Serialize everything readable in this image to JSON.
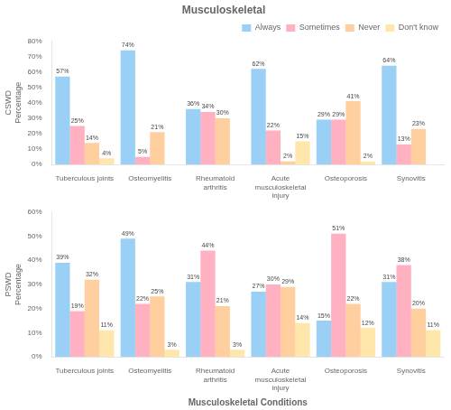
{
  "chart_data": [
    {
      "type": "bar",
      "title": "Musculoskeletal",
      "ylabel": [
        "CSWD",
        "Percentage"
      ],
      "categories": [
        "Tuberculous joints",
        "Osteomyelitis",
        "Rheumatoid\narthritis",
        "Acute\nmusculoskeletal\ninjury",
        "Osteoporosis",
        "Synovitis"
      ],
      "series": [
        {
          "name": "Always",
          "values": [
            0.57,
            0.74,
            0.36,
            0.62,
            0.29,
            0.64
          ],
          "value_labels": [
            "57%",
            "74%",
            "36%",
            "62%",
            "29%",
            "64%"
          ]
        },
        {
          "name": "Sometimes",
          "values": [
            0.25,
            0.05,
            0.34,
            0.22,
            0.29,
            0.13
          ],
          "value_labels": [
            "25%",
            "5%",
            "34%",
            "22%",
            "29%",
            "13%"
          ]
        },
        {
          "name": "Never",
          "values": [
            0.14,
            0.21,
            0.3,
            0.02,
            0.41,
            0.23
          ],
          "value_labels": [
            "14%",
            "21%",
            "30%",
            "2%",
            "41%",
            "23%"
          ]
        },
        {
          "name": "Don't know",
          "values": [
            0.04,
            0,
            0,
            0.15,
            0.02,
            0
          ],
          "value_labels": [
            "4%",
            null,
            null,
            "15%",
            "2%",
            null
          ]
        }
      ],
      "ylim": [
        0,
        0.8
      ],
      "yticks": [
        {
          "value": 0,
          "label": "0%"
        },
        {
          "value": 0.1,
          "label": "10%"
        },
        {
          "value": 0.2,
          "label": "20%"
        },
        {
          "value": 0.3,
          "label": "30%"
        },
        {
          "value": 0.4,
          "label": "40%"
        },
        {
          "value": 0.5,
          "label": "50%"
        },
        {
          "value": 0.6,
          "label": "60%"
        },
        {
          "value": 0.7,
          "label": "70%"
        },
        {
          "value": 0.8,
          "label": "80%"
        }
      ],
      "legend": "upper right",
      "data_labels": true,
      "grid": false
    },
    {
      "type": "bar",
      "xlabel": "Musculoskeletal Conditions",
      "ylabel": [
        "PSWD",
        "Percentage"
      ],
      "categories": [
        "Tuberculous joints",
        "Osteomyelitis",
        "Rheumatoid\narthritis",
        "Acute\nmusculoskeletal\ninjury",
        "Osteoporosis",
        "Synovitis"
      ],
      "series": [
        {
          "name": "Always",
          "values": [
            0.39,
            0.49,
            0.31,
            0.27,
            0.15,
            0.31
          ],
          "value_labels": [
            "39%",
            "49%",
            "31%",
            "27%",
            "15%",
            "31%"
          ]
        },
        {
          "name": "Sometimes",
          "values": [
            0.19,
            0.22,
            0.44,
            0.3,
            0.51,
            0.38
          ],
          "value_labels": [
            "19%",
            "22%",
            "44%",
            "30%",
            "51%",
            "38%"
          ]
        },
        {
          "name": "Never",
          "values": [
            0.32,
            0.25,
            0.21,
            0.29,
            0.22,
            0.2
          ],
          "value_labels": [
            "32%",
            "25%",
            "21%",
            "29%",
            "22%",
            "20%"
          ]
        },
        {
          "name": "Don't know",
          "values": [
            0.11,
            0.03,
            0.03,
            0.14,
            0.12,
            0.11
          ],
          "value_labels": [
            "11%",
            "3%",
            "3%",
            "14%",
            "12%",
            "11%"
          ]
        }
      ],
      "ylim": [
        0,
        0.6
      ],
      "yticks": [
        {
          "value": 0,
          "label": "0%"
        },
        {
          "value": 0.1,
          "label": "10%"
        },
        {
          "value": 0.2,
          "label": "20%"
        },
        {
          "value": 0.3,
          "label": "30%"
        },
        {
          "value": 0.4,
          "label": "40%"
        },
        {
          "value": 0.5,
          "label": "50%"
        },
        {
          "value": 0.6,
          "label": "60%"
        }
      ],
      "data_labels": true,
      "grid": false
    }
  ]
}
